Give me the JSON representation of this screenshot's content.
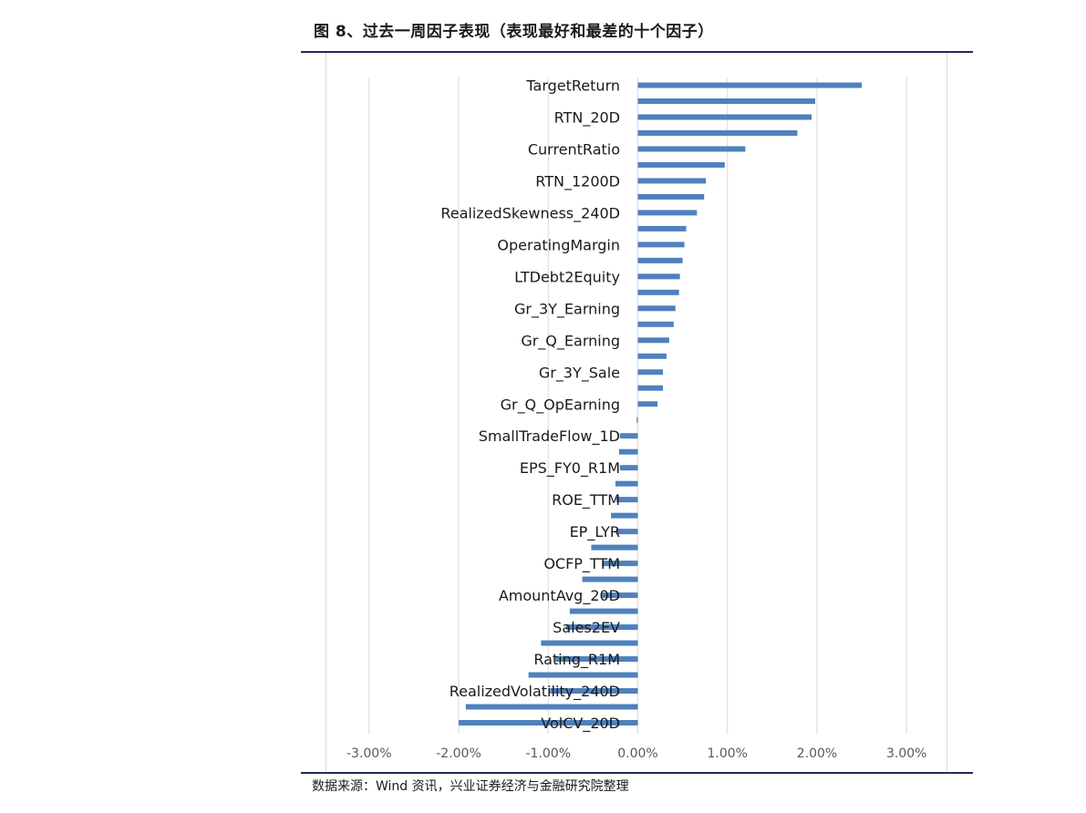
{
  "figure": {
    "title": "图 8、过去一周因子表现（表现最好和最差的十个因子）",
    "source": "数据来源：Wind 资讯，兴业证券经济与金融研究院整理"
  },
  "colors": {
    "bar": "#4f81bd",
    "grid": "#d9d9d9",
    "rule": "#1f2d55",
    "tick_text": "#595959",
    "label_text": "#1a1a1a"
  },
  "chart_data": {
    "type": "bar",
    "orientation": "horizontal",
    "title": "",
    "xlabel": "",
    "ylabel": "",
    "xlim": [
      -0.035,
      0.035
    ],
    "x_ticks": [
      -0.03,
      -0.02,
      -0.01,
      0,
      0.01,
      0.02,
      0.03
    ],
    "x_tick_labels": [
      "-3.00%",
      "-2.00%",
      "-1.00%",
      "0.00%",
      "1.00%",
      "2.00%",
      "3.00%"
    ],
    "grid": "vertical",
    "legend": "none",
    "categories": [
      "TargetReturn",
      "",
      "RTN_20D",
      "",
      "CurrentRatio",
      "",
      "RTN_1200D",
      "",
      "RealizedSkewness_240D",
      "",
      "OperatingMargin",
      "",
      "LTDebt2Equity",
      "",
      "Gr_3Y_Earning",
      "",
      "Gr_Q_Earning",
      "",
      "Gr_3Y_Sale",
      "",
      "Gr_Q_OpEarning",
      "",
      "SmallTradeFlow_1D",
      "",
      "EPS_FY0_R1M",
      "",
      "ROE_TTM",
      "",
      "EP_LYR",
      "",
      "OCFP_TTM",
      "",
      "AmountAvg_20D",
      "",
      "Sales2EV",
      "",
      "Rating_R1M",
      "",
      "RealizedVolatility_240D",
      "",
      "VolCV_20D"
    ],
    "values": [
      0.025,
      0.0198,
      0.0194,
      0.0178,
      0.012,
      0.0097,
      0.0076,
      0.0074,
      0.0066,
      0.0054,
      0.0052,
      0.005,
      0.0047,
      0.0046,
      0.0042,
      0.004,
      0.0035,
      0.0032,
      0.0028,
      0.0028,
      0.0022,
      -0.0001,
      -0.002,
      -0.0021,
      -0.002,
      -0.0025,
      -0.0024,
      -0.003,
      -0.0024,
      -0.0052,
      -0.004,
      -0.0062,
      -0.004,
      -0.0076,
      -0.008,
      -0.0108,
      -0.0092,
      -0.0122,
      -0.0098,
      -0.0192,
      -0.02
    ]
  }
}
